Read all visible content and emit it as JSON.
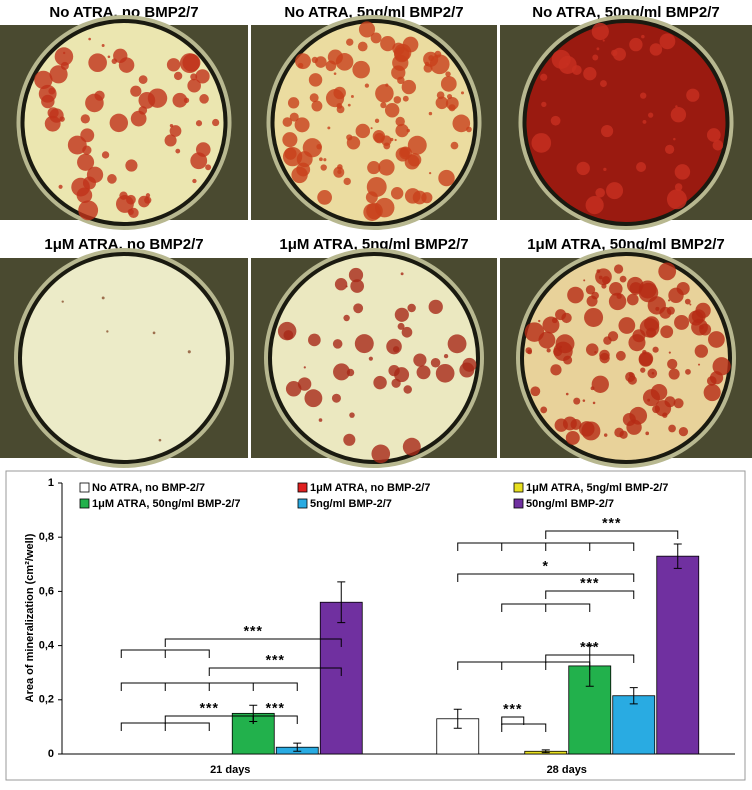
{
  "panels": [
    {
      "title": "No ATRA, no BMP2/7"
    },
    {
      "title": "No ATRA, 5ng/ml BMP2/7"
    },
    {
      "title": "No ATRA, 50ng/ml BMP2/7"
    },
    {
      "title": "1μM ATRA, no BMP2/7"
    },
    {
      "title": "1μM ATRA, 5ng/ml BMP2/7"
    },
    {
      "title": "1μM ATRA, 50ng/ml BMP2/7"
    }
  ],
  "chart_data": {
    "type": "bar",
    "y_label": "Area of mineralization (cm²/well)",
    "categories": [
      "21 days",
      "28 days"
    ],
    "ylim": [
      0,
      1
    ],
    "yticks": [
      0,
      {
        "value": 0.2,
        "label": "0,2"
      },
      {
        "value": 0.4,
        "label": "0,4"
      },
      {
        "value": 0.6,
        "label": "0,6"
      },
      {
        "value": 0.8,
        "label": "0,8"
      },
      1
    ],
    "series": [
      {
        "name": "No ATRA, no BMP-2/7",
        "color": "#ffffff",
        "values": [
          0,
          0.13
        ],
        "errors": [
          null,
          0.035
        ]
      },
      {
        "name": "1μM ATRA, no BMP-2/7",
        "color": "#e02020",
        "values": [
          0,
          0
        ],
        "errors": [
          null,
          null
        ]
      },
      {
        "name": "1μM ATRA, 5ng/ml BMP-2/7",
        "color": "#e8e020",
        "values": [
          0,
          0.01
        ],
        "errors": [
          null,
          0.005
        ]
      },
      {
        "name": "1μM ATRA, 50ng/ml BMP-2/7",
        "color": "#22b14c",
        "values": [
          0.15,
          0.325
        ],
        "errors": [
          0.03,
          0.075
        ]
      },
      {
        "name": "5ng/ml BMP-2/7",
        "color": "#29abe2",
        "values": [
          0.025,
          0.215
        ],
        "errors": [
          0.015,
          0.03
        ]
      },
      {
        "name": "50ng/ml BMP-2/7",
        "color": "#7030a0",
        "values": [
          0.56,
          0.73
        ],
        "errors": [
          0.075,
          0.045
        ]
      }
    ],
    "annotations": [
      "***",
      "***",
      "***",
      "***",
      "***",
      "*",
      "***",
      "***",
      "***"
    ]
  }
}
